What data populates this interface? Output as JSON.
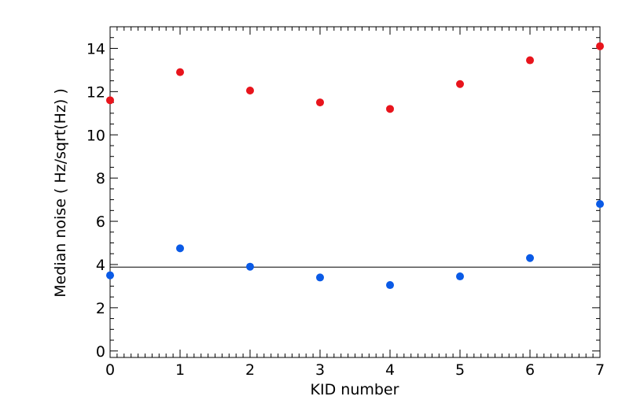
{
  "chart_data": {
    "type": "scatter",
    "title": "",
    "xlabel": "KID number",
    "ylabel": "Median noise ( Hz/sqrt(Hz) )",
    "xlim": [
      0,
      7
    ],
    "ylim": [
      -0.3,
      15
    ],
    "x_ticks": [
      "0",
      "1",
      "2",
      "3",
      "4",
      "5",
      "6",
      "7"
    ],
    "y_ticks": [
      "0",
      "2",
      "4",
      "6",
      "8",
      "10",
      "12",
      "14"
    ],
    "grid": false,
    "legend": "none",
    "series": [
      {
        "color": "#e8141c",
        "x": [
          0,
          1,
          2,
          3,
          4,
          5,
          6,
          7
        ],
        "y": [
          11.6,
          12.9,
          12.05,
          11.5,
          11.2,
          12.35,
          13.45,
          14.1
        ]
      },
      {
        "color": "#0a5ae6",
        "x": [
          0,
          1,
          2,
          3,
          4,
          5,
          6,
          7
        ],
        "y": [
          3.5,
          4.75,
          3.9,
          3.4,
          3.05,
          3.45,
          4.3,
          6.8
        ]
      }
    ],
    "reference_line": {
      "y": 3.88,
      "color": "#000000"
    }
  }
}
